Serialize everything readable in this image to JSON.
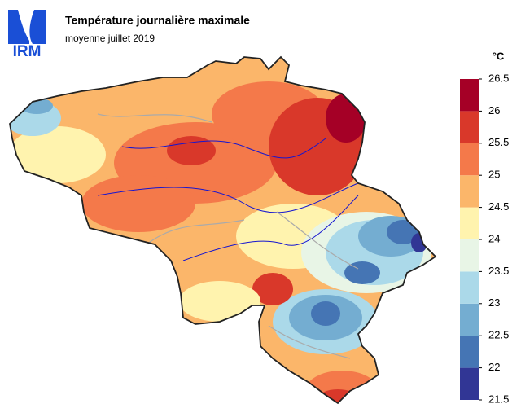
{
  "logo": "IRM",
  "title": "Température journalière maximale",
  "subtitle": "moyenne juillet 2019",
  "legend": {
    "unit": "°C",
    "ticks": [
      21.5,
      22,
      22.5,
      23,
      23.5,
      24,
      24.5,
      25,
      25.5,
      26,
      26.5
    ],
    "colors": [
      "#313695",
      "#4575b4",
      "#74add1",
      "#abd9e9",
      "#e8f5e6",
      "#fff3ae",
      "#fbb66a",
      "#f4794a",
      "#d9382a",
      "#a50026"
    ]
  }
}
